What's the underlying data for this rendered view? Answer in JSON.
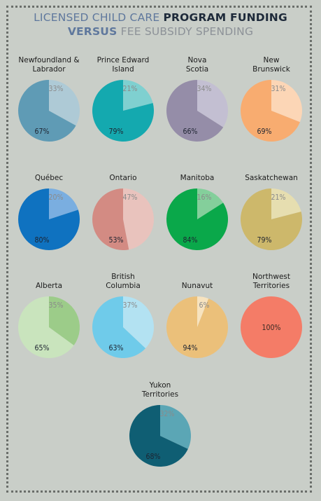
{
  "header": {
    "title_line1_part1": "LICENSED CHILD CARE",
    "title_line1_part2": "PROGRAM FUNDING",
    "title_line2_part1": "VERSUS",
    "title_line2_part2": "FEE SUBSIDY SPENDING"
  },
  "chart_data": {
    "type": "pie",
    "charts": [
      {
        "name": [
          "Newfoundland &",
          "Labrador"
        ],
        "values": [
          33,
          67
        ],
        "labels": [
          "33%",
          "67%"
        ],
        "colors": [
          "#aecad6",
          "#5f9bb5"
        ]
      },
      {
        "name": [
          "Prince Edward",
          "Island"
        ],
        "values": [
          21,
          79
        ],
        "labels": [
          "21%",
          "79%"
        ],
        "colors": [
          "#7fd0d0",
          "#14a9af"
        ]
      },
      {
        "name": [
          "Nova",
          "Scotia"
        ],
        "values": [
          34,
          66
        ],
        "labels": [
          "34%",
          "66%"
        ],
        "colors": [
          "#c3bfd2",
          "#958da8"
        ]
      },
      {
        "name": [
          "New",
          "Brunswick"
        ],
        "values": [
          31,
          69
        ],
        "labels": [
          "31%",
          "69%"
        ],
        "colors": [
          "#fcd6b6",
          "#f8ac70"
        ]
      },
      {
        "name": [
          "Québec"
        ],
        "values": [
          20,
          80
        ],
        "labels": [
          "20%",
          "80%"
        ],
        "colors": [
          "#7aaee0",
          "#0f72c0"
        ]
      },
      {
        "name": [
          "Ontario"
        ],
        "values": [
          47,
          53
        ],
        "labels": [
          "47%",
          "53%"
        ],
        "colors": [
          "#e9c3bd",
          "#d38b83"
        ]
      },
      {
        "name": [
          "Manitoba"
        ],
        "values": [
          16,
          84
        ],
        "labels": [
          "16%",
          "84%"
        ],
        "colors": [
          "#84cf9b",
          "#0aa84a"
        ]
      },
      {
        "name": [
          "Saskatchewan"
        ],
        "values": [
          21,
          79
        ],
        "labels": [
          "21%",
          "79%"
        ],
        "colors": [
          "#e6deb0",
          "#cdb86b"
        ]
      },
      {
        "name": [
          "Alberta"
        ],
        "values": [
          35,
          65
        ],
        "labels": [
          "35%",
          "65%"
        ],
        "colors": [
          "#9ccc89",
          "#c9e4bd"
        ]
      },
      {
        "name": [
          "British",
          "Columbia"
        ],
        "values": [
          37,
          63
        ],
        "labels": [
          "37%",
          "63%"
        ],
        "colors": [
          "#b3e2f2",
          "#6fcbea"
        ]
      },
      {
        "name": [
          "Nunavut"
        ],
        "values": [
          6,
          94
        ],
        "labels": [
          "6%",
          "94%"
        ],
        "colors": [
          "#f7e3bf",
          "#ebc07a"
        ]
      },
      {
        "name": [
          "Northwest",
          "Territories"
        ],
        "values": [
          100
        ],
        "labels": [
          "100%"
        ],
        "colors": [
          "#f47c67"
        ]
      },
      {
        "name": [
          "Yukon",
          "Territories"
        ],
        "values": [
          32,
          68
        ],
        "labels": [
          "32%",
          "68%"
        ],
        "colors": [
          "#5ba6b5",
          "#0f5e73"
        ]
      }
    ]
  }
}
